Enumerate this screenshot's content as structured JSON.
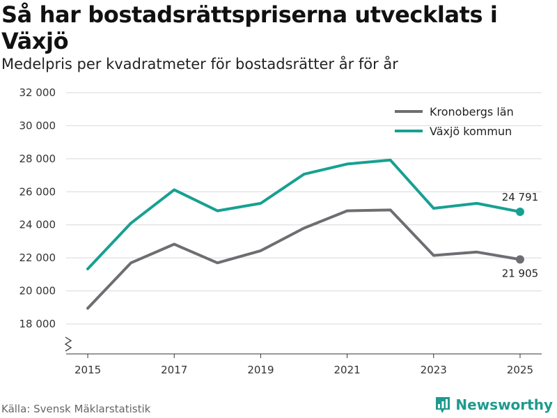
{
  "title": "Så har bostadsrättspriserna utvecklats i Växjö",
  "subtitle": "Medelpris per kvadratmeter för bostadsrätter år för år",
  "source": "Källa: Svensk Mäklarstatistik",
  "brand": "Newsworthy",
  "colors": {
    "vaxjo": "#17a092",
    "kronoberg": "#6e6d72",
    "grid": "#d8d8d8",
    "axis": "#333333",
    "brand": "#1f9a8e"
  },
  "chart_data": {
    "type": "line",
    "title": "Så har bostadsrättspriserna utvecklats i Växjö",
    "subtitle": "Medelpris per kvadratmeter för bostadsrätter år för år",
    "xlabel": "",
    "ylabel": "",
    "x": [
      2015,
      2016,
      2017,
      2018,
      2019,
      2020,
      2021,
      2022,
      2023,
      2024,
      2025
    ],
    "x_ticks": [
      "2015",
      "2017",
      "2019",
      "2021",
      "2023",
      "2025"
    ],
    "ylim": [
      18000,
      32000
    ],
    "y_ticks": [
      "18 000",
      "20 000",
      "22 000",
      "24 000",
      "26 000",
      "28 000",
      "30 000",
      "32 000"
    ],
    "y_tick_values": [
      18000,
      20000,
      22000,
      24000,
      26000,
      28000,
      30000,
      32000
    ],
    "axis_break": true,
    "legend_position": "top-right",
    "series": [
      {
        "name": "Kronobergs län",
        "color": "#6e6d72",
        "values": [
          18950,
          21700,
          22830,
          21700,
          22430,
          23800,
          24850,
          24900,
          22150,
          22350,
          21905
        ],
        "end_label": "21 905"
      },
      {
        "name": "Växjö kommun",
        "color": "#17a092",
        "values": [
          21330,
          24100,
          26120,
          24850,
          25300,
          27060,
          27680,
          27920,
          25000,
          25300,
          24791
        ],
        "end_label": "24 791"
      }
    ]
  }
}
